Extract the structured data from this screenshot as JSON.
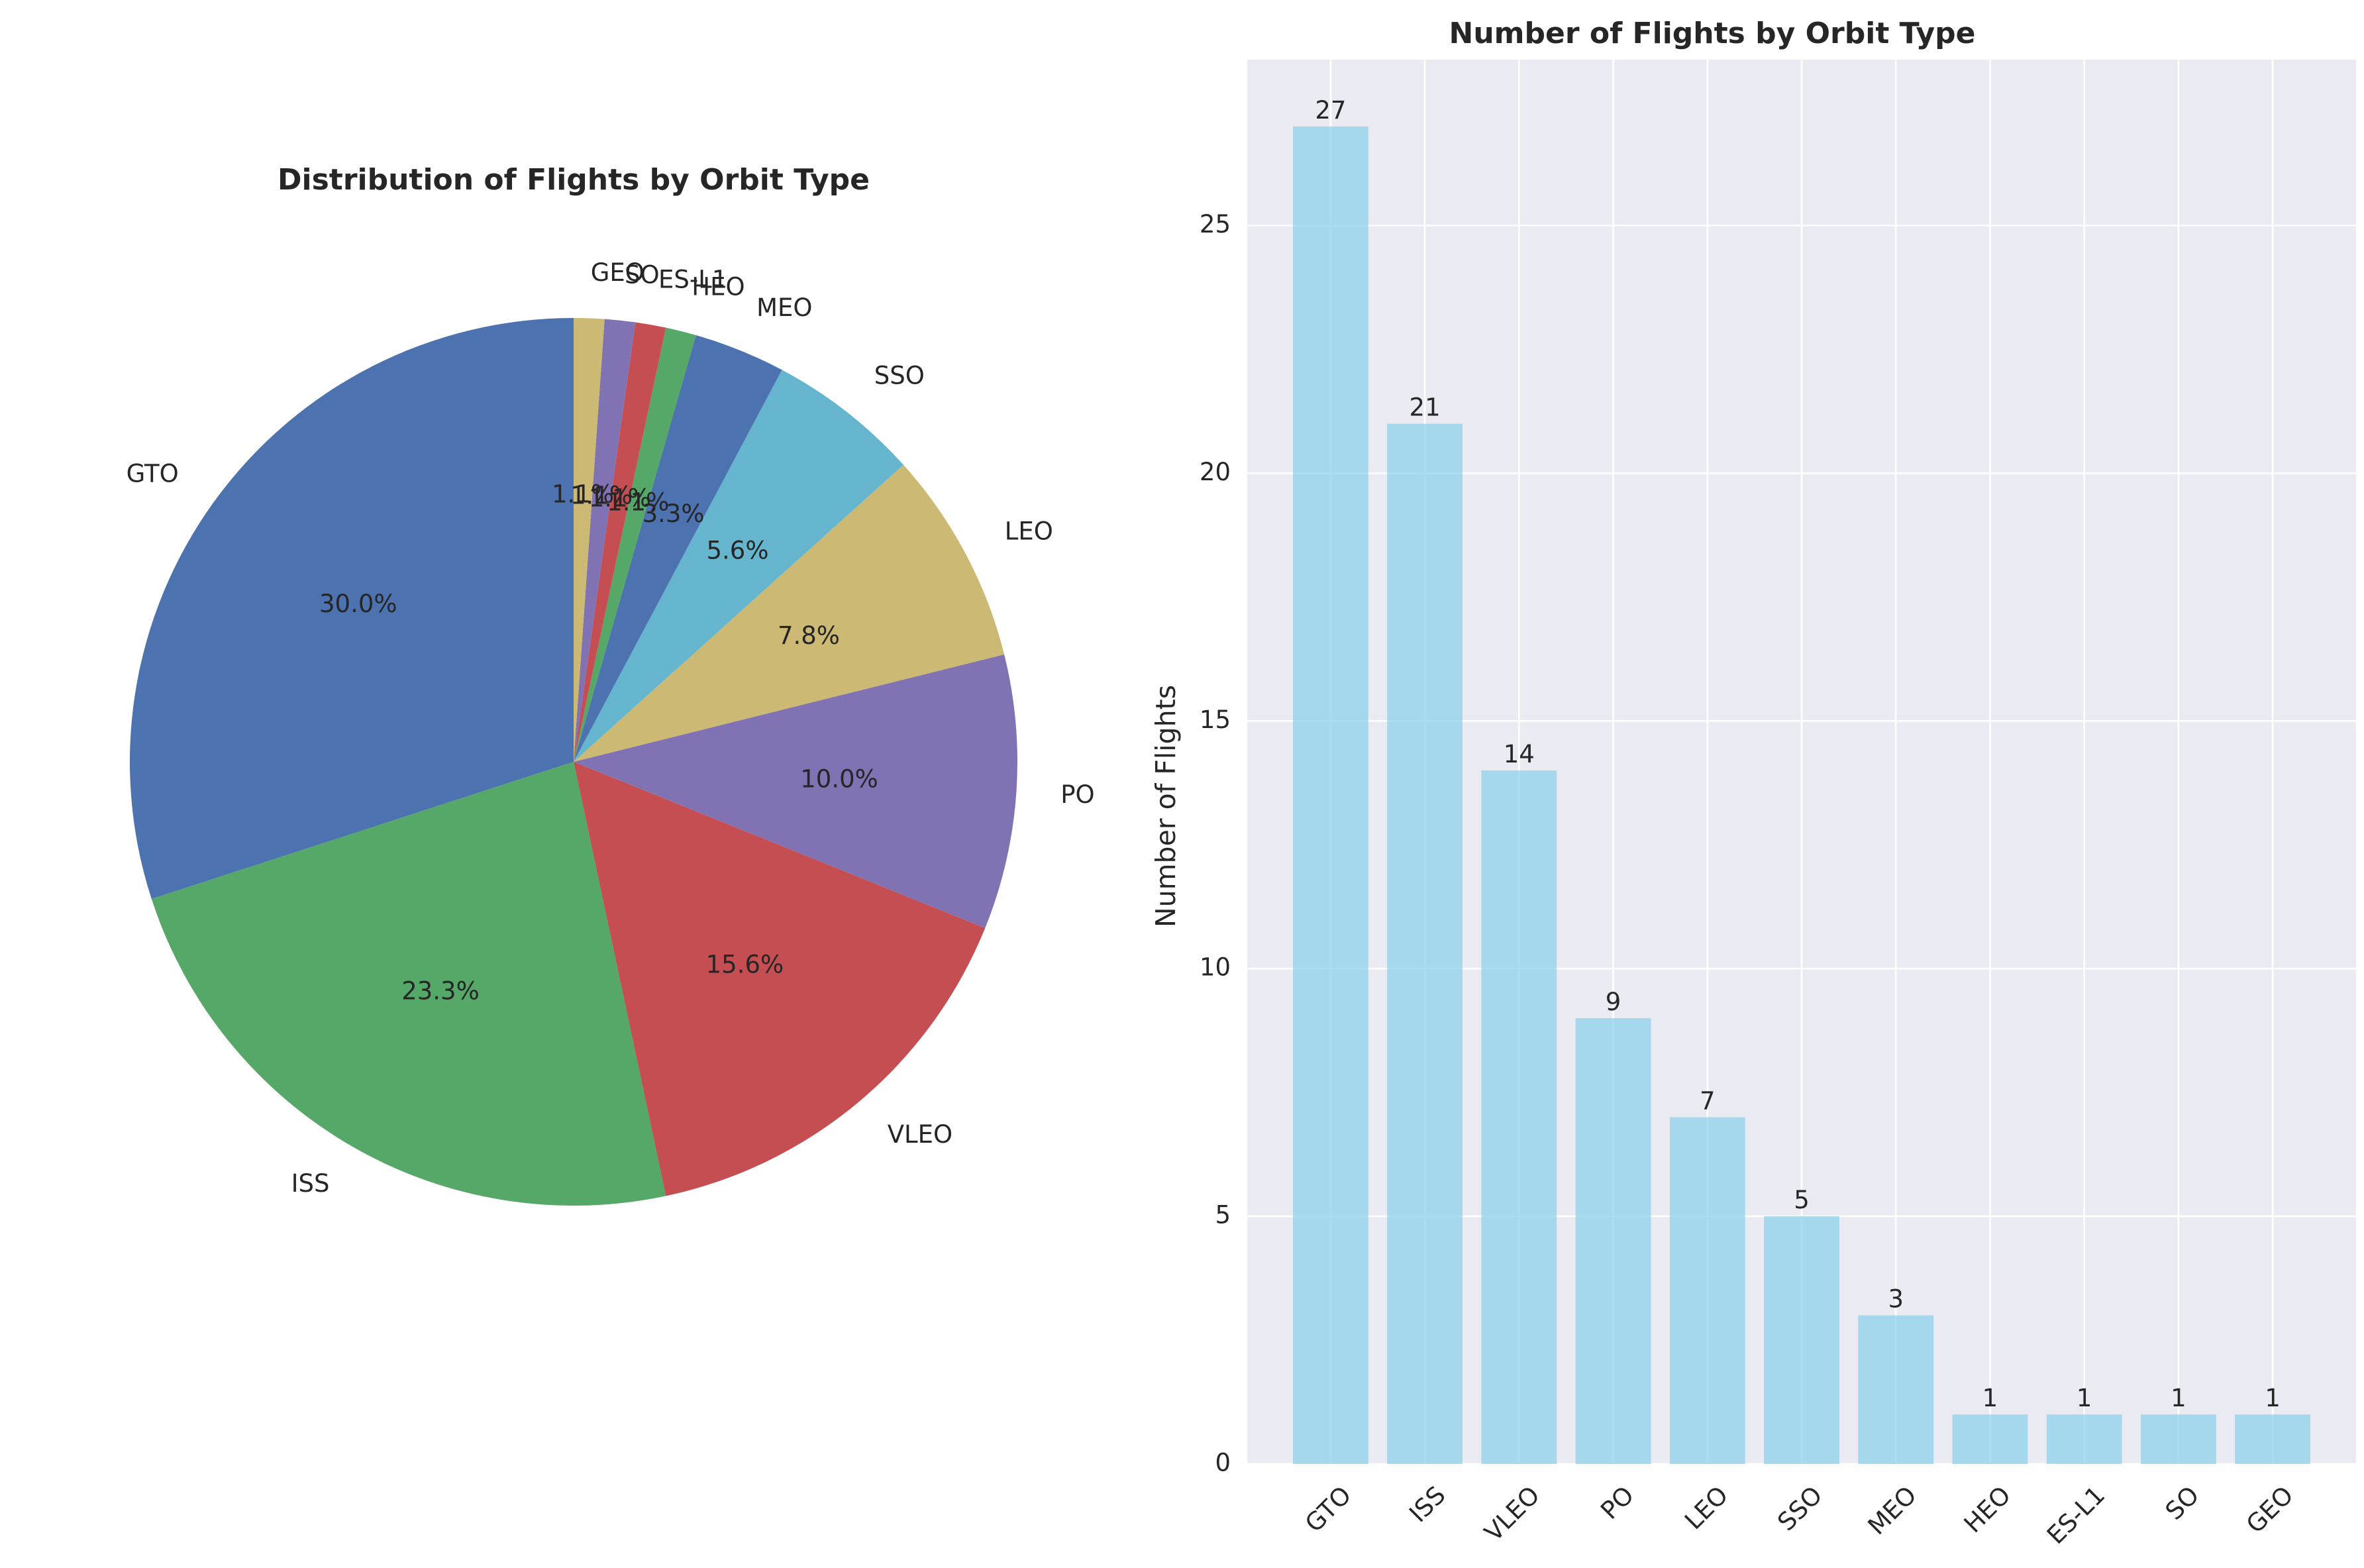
{
  "chart_data": [
    {
      "type": "pie",
      "title": "Distribution of Flights by Orbit Type",
      "categories": [
        "GTO",
        "ISS",
        "VLEO",
        "PO",
        "LEO",
        "SSO",
        "MEO",
        "HEO",
        "ES-L1",
        "SO",
        "GEO"
      ],
      "values": [
        27,
        21,
        14,
        9,
        7,
        5,
        3,
        1,
        1,
        1,
        1
      ],
      "percent_labels": [
        "30.0%",
        "23.3%",
        "15.6%",
        "10.0%",
        "7.8%",
        "5.6%",
        "3.3%",
        "1.1%",
        "1.1%",
        "1.1%",
        "1.1%"
      ],
      "colors": [
        "#4c72b0",
        "#55a868",
        "#c44e52",
        "#8172b3",
        "#ccb974",
        "#64b5cd",
        "#4c72b0",
        "#55a868",
        "#c44e52",
        "#8172b3",
        "#ccb974"
      ],
      "start_angle": 90
    },
    {
      "type": "bar",
      "title": "Number of Flights by Orbit Type",
      "categories": [
        "GTO",
        "ISS",
        "VLEO",
        "PO",
        "LEO",
        "SSO",
        "MEO",
        "HEO",
        "ES-L1",
        "SO",
        "GEO"
      ],
      "values": [
        27,
        21,
        14,
        9,
        7,
        5,
        3,
        1,
        1,
        1,
        1
      ],
      "ylabel": "Number of Flights",
      "xlabel": "",
      "ylim": [
        0,
        28.35
      ],
      "yticks": [
        0,
        5,
        10,
        15,
        20,
        25
      ],
      "bar_color": "#87ceeb",
      "background": "#eaeaf2",
      "grid": true
    }
  ]
}
